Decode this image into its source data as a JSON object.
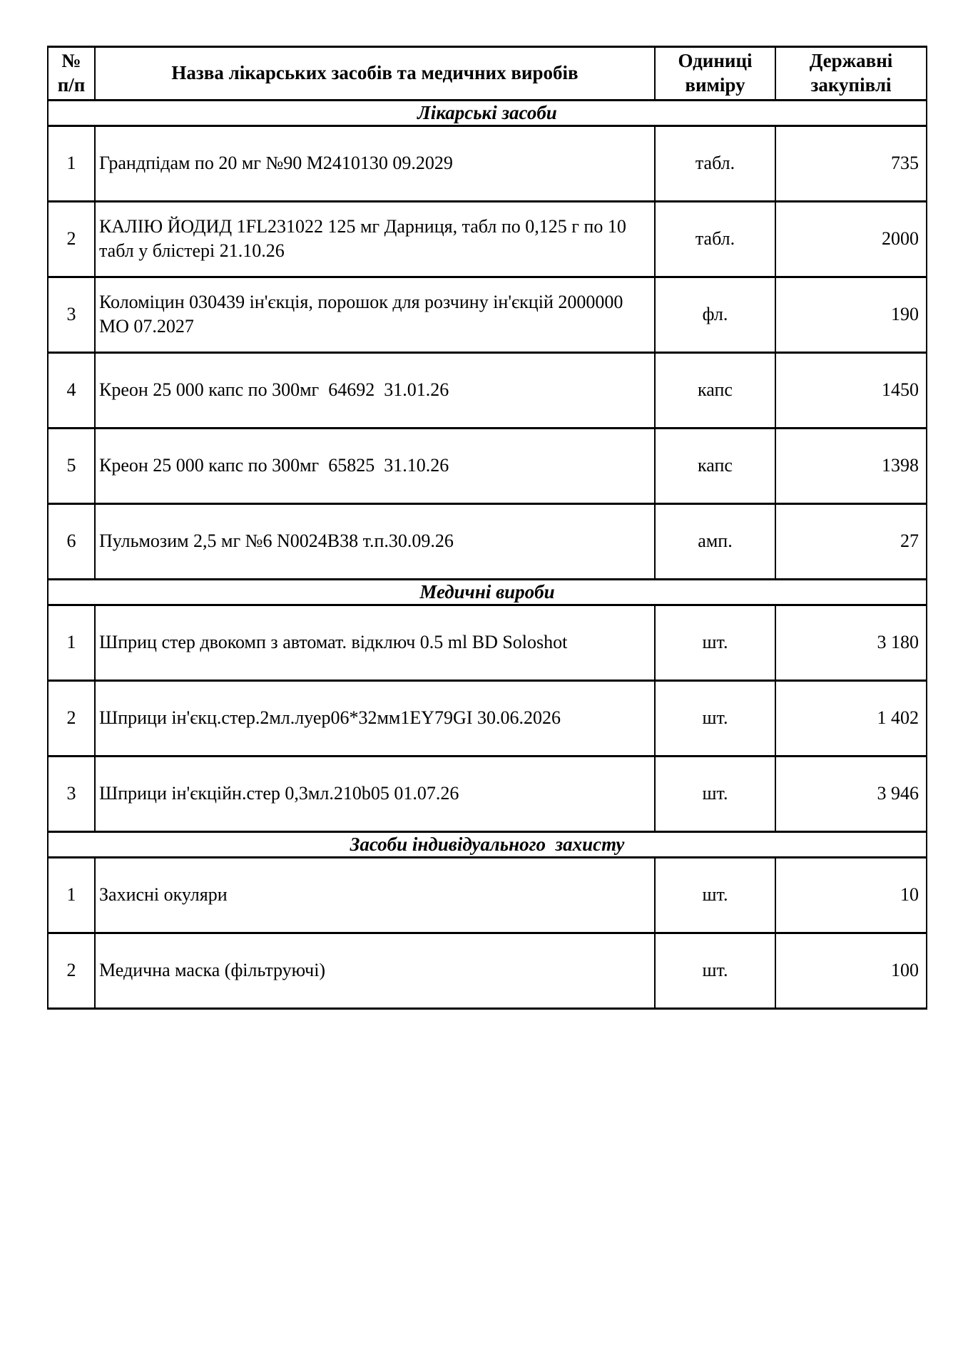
{
  "table": {
    "headers": {
      "num": "№ п/п",
      "name": "Назва лікарських засобів та медичних виробів",
      "unit": "Одиниці виміру",
      "purchase": "Державні закупівлі"
    },
    "sections": [
      {
        "title": "Лікарські засоби",
        "rows": [
          {
            "num": "1",
            "name": "Грандпідам по 20 мг №90 М2410130 09.2029",
            "unit": "табл.",
            "qty": "735"
          },
          {
            "num": "2",
            "name": "КАЛІЮ ЙОДИД 1FL231022 125 мг Дарниця, табл по 0,125 г по 10 табл у блістері 21.10.26",
            "unit": "табл.",
            "qty": "2000"
          },
          {
            "num": "3",
            "name": "Коломіцин 030439 ін'єкція, порошок для розчину ін'єкцій 2000000 МО 07.2027",
            "unit": "фл.",
            "qty": "190"
          },
          {
            "num": "4",
            "name": "Креон 25 000 капс по 300мг  64692  31.01.26",
            "unit": "капс",
            "qty": "1450"
          },
          {
            "num": "5",
            "name": "Креон 25 000 капс по 300мг  65825  31.10.26",
            "unit": "капс",
            "qty": "1398"
          },
          {
            "num": "6",
            "name": "Пульмозим 2,5 мг №6 N0024B38 т.п.30.09.26",
            "unit": "амп.",
            "qty": "27"
          }
        ]
      },
      {
        "title": "Медичні вироби",
        "rows": [
          {
            "num": "1",
            "name": "Шприц стер двокомп з автомат. відключ 0.5 ml BD Soloshot",
            "unit": "шт.",
            "qty": "3 180"
          },
          {
            "num": "2",
            "name": "Шприци ін'єкц.стер.2мл.луер06*32мм1EY79GI 30.06.2026",
            "unit": "шт.",
            "qty": "1 402"
          },
          {
            "num": "3",
            "name": "Шприци ін'єкційн.стер 0,3мл.210b05 01.07.26",
            "unit": "шт.",
            "qty": "3 946"
          }
        ]
      },
      {
        "title": "Засоби індивідуального  захисту",
        "rows": [
          {
            "num": "1",
            "name": "Захисні окуляри",
            "unit": "шт.",
            "qty": "10"
          },
          {
            "num": "2",
            "name": "Медична маска (фільтруючі)",
            "unit": "шт.",
            "qty": "100"
          }
        ]
      }
    ]
  }
}
